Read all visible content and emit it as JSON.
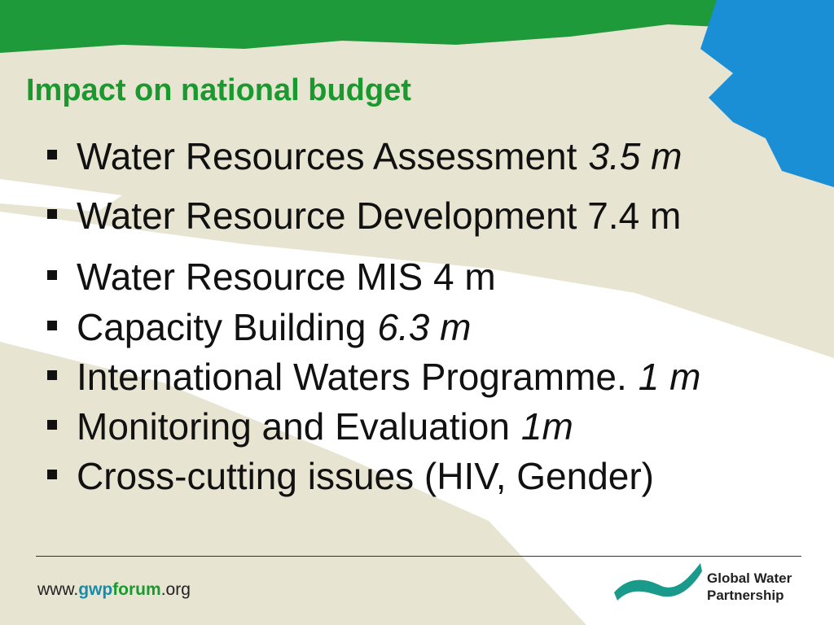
{
  "title": "Impact on national budget",
  "bullets": [
    {
      "text": "Water Resources Assessment",
      "amount": "3.5 m"
    },
    {
      "text": "Water Resource Development 7.4 m"
    },
    {
      "text": "Water Resource MIS 4 m"
    },
    {
      "text": "Capacity Building",
      "amount": "6.3 m"
    },
    {
      "text": "International Waters Programme.",
      "amount": "1 m"
    },
    {
      "text": "Monitoring and Evaluation",
      "amount": "1m"
    },
    {
      "text": "Cross-cutting issues (HIV, Gender)"
    }
  ],
  "footer": {
    "url": [
      "www.",
      "gwp",
      "forum",
      ".org"
    ],
    "logo": [
      "Global Water",
      "Partnership"
    ]
  }
}
